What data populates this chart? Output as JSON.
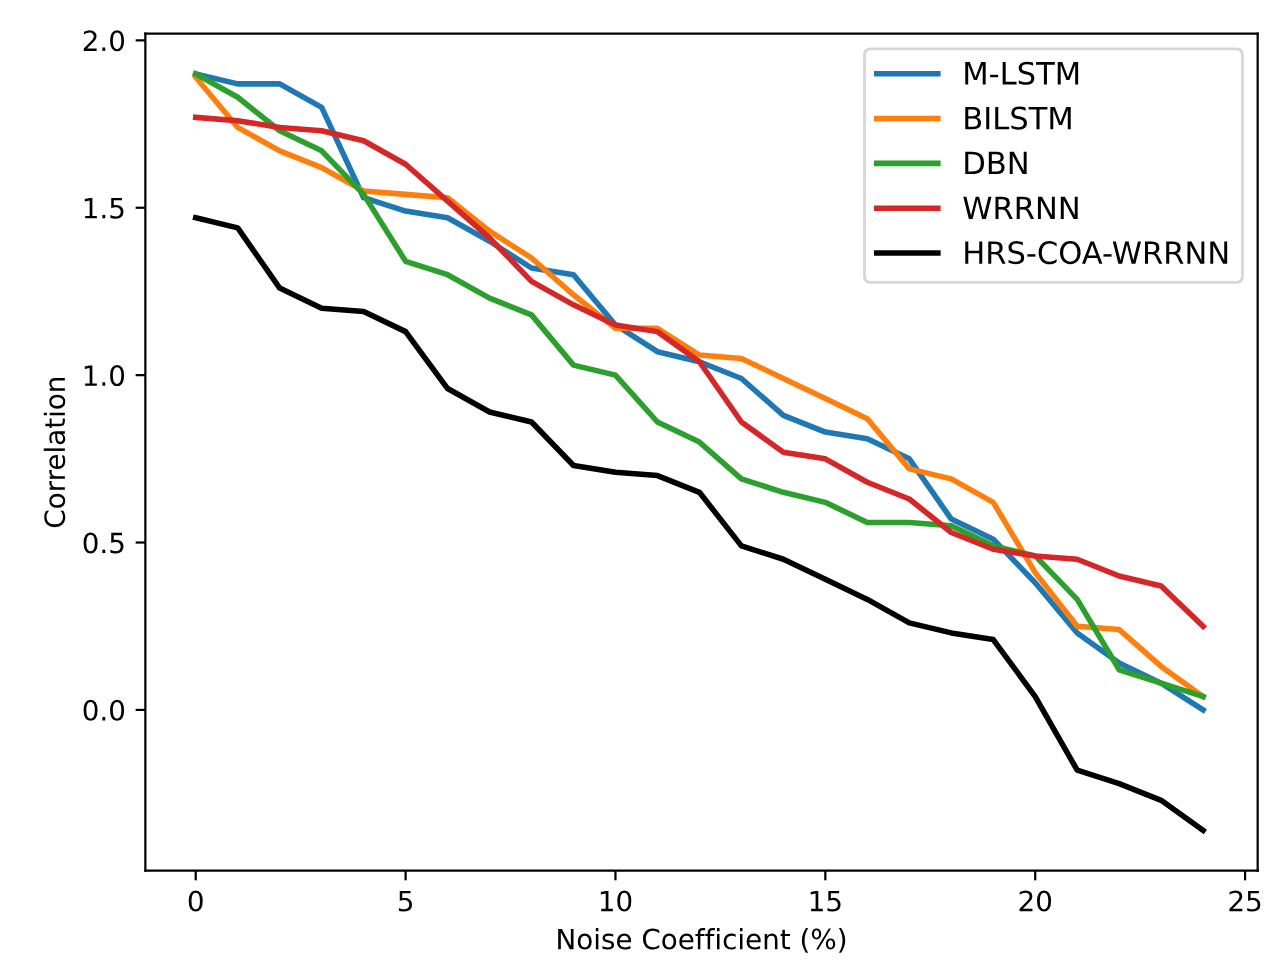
{
  "chart_data": {
    "type": "line",
    "xlabel": "Noise Coefficient (%)",
    "ylabel": "Correlation",
    "x": [
      0,
      1,
      2,
      3,
      4,
      5,
      6,
      7,
      8,
      9,
      10,
      11,
      12,
      13,
      14,
      15,
      16,
      17,
      18,
      19,
      20,
      21,
      22,
      23,
      24
    ],
    "series": [
      {
        "name": "M-LSTM",
        "color": "#1f77b4",
        "values": [
          1.9,
          1.87,
          1.87,
          1.8,
          1.53,
          1.49,
          1.47,
          1.4,
          1.32,
          1.3,
          1.15,
          1.07,
          1.04,
          0.99,
          0.88,
          0.83,
          0.81,
          0.75,
          0.57,
          0.51,
          0.38,
          0.23,
          0.14,
          0.08,
          0.0
        ]
      },
      {
        "name": "BILSTM",
        "color": "#ff7f0e",
        "values": [
          1.89,
          1.74,
          1.67,
          1.62,
          1.55,
          1.54,
          1.53,
          1.43,
          1.35,
          1.24,
          1.14,
          1.14,
          1.06,
          1.05,
          0.99,
          0.93,
          0.87,
          0.72,
          0.69,
          0.62,
          0.41,
          0.25,
          0.24,
          0.13,
          0.04
        ]
      },
      {
        "name": "DBN",
        "color": "#2ca02c",
        "values": [
          1.9,
          1.83,
          1.73,
          1.67,
          1.54,
          1.34,
          1.3,
          1.23,
          1.18,
          1.03,
          1.0,
          0.86,
          0.8,
          0.69,
          0.65,
          0.62,
          0.56,
          0.56,
          0.55,
          0.49,
          0.46,
          0.33,
          0.12,
          0.08,
          0.04
        ]
      },
      {
        "name": "WRRNN",
        "color": "#d62728",
        "values": [
          1.77,
          1.76,
          1.74,
          1.73,
          1.7,
          1.63,
          1.52,
          1.41,
          1.28,
          1.21,
          1.15,
          1.13,
          1.04,
          0.86,
          0.77,
          0.75,
          0.68,
          0.63,
          0.53,
          0.48,
          0.46,
          0.45,
          0.4,
          0.37,
          0.25
        ]
      },
      {
        "name": "HRS-COA-WRRNN",
        "color": "#000000",
        "values": [
          1.47,
          1.44,
          1.26,
          1.2,
          1.19,
          1.13,
          0.96,
          0.89,
          0.86,
          0.73,
          0.71,
          0.7,
          0.65,
          0.49,
          0.45,
          0.39,
          0.33,
          0.26,
          0.23,
          0.21,
          0.04,
          -0.18,
          -0.22,
          -0.27,
          -0.36
        ]
      }
    ],
    "xlim": [
      -1.2,
      25.3
    ],
    "xticks": [
      0,
      5,
      10,
      15,
      20,
      25
    ],
    "ylim": [
      -0.48,
      2.02
    ],
    "yticks": [
      {
        "value": 0,
        "label": "0.0"
      },
      {
        "value": 0.5,
        "label": "0.5"
      },
      {
        "value": 1.0,
        "label": "1.0"
      },
      {
        "value": 1.5,
        "label": "1.5"
      },
      {
        "value": 2.0,
        "label": "2.0"
      }
    ],
    "grid": false,
    "legend": "top right",
    "marker": "none",
    "line_style": "solid"
  }
}
